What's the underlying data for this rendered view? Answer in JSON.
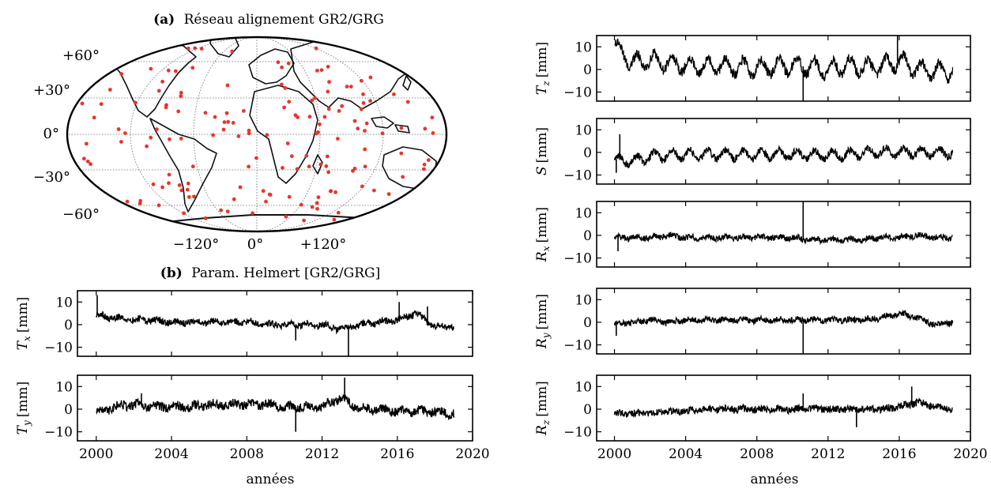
{
  "map_panel": {
    "title_prefix": "(a)",
    "title_text": "Réseau alignement GR2/GRG",
    "lat_labels": [
      "+60°",
      "+30°",
      "0°",
      "−30°",
      "−60°"
    ],
    "lon_labels": [
      "−120°",
      "0°",
      "+120°"
    ],
    "station_color": "#e8352c"
  },
  "helmert_panel": {
    "title_prefix": "(b)",
    "title_text": "Param. Helmert [GR2/GRG]"
  },
  "xlabel": "années",
  "x_ticks": [
    "2000",
    "2004",
    "2008",
    "2012",
    "2016",
    "2020"
  ],
  "y_ticks": [
    "10",
    "0",
    "−10"
  ],
  "chart_data": [
    {
      "type": "line",
      "id": "Tz",
      "ylabel_sym": "T",
      "ylabel_sub": "z",
      "ylabel_unit": "[mm]",
      "xlim": [
        1999,
        2020
      ],
      "ylim": [
        -14,
        15
      ],
      "x": [
        2000,
        2001,
        2002,
        2003,
        2004,
        2005,
        2006,
        2007,
        2008,
        2009,
        2010,
        2011,
        2012,
        2013,
        2014,
        2015,
        2016,
        2017,
        2018,
        2019
      ],
      "y": [
        11,
        3,
        4,
        3,
        2,
        1,
        2,
        1,
        1,
        1,
        2,
        1,
        0,
        2,
        1,
        1,
        4,
        0,
        -1,
        -1
      ],
      "spikes": [
        {
          "x": 2010.6,
          "y": -14
        },
        {
          "x": 2015.9,
          "y": 15
        }
      ],
      "seasonal_amp": 3.5,
      "noise": 2.2
    },
    {
      "type": "line",
      "id": "S",
      "ylabel_sym": "S",
      "ylabel_sub": "",
      "ylabel_unit": "[mm]",
      "xlim": [
        1999,
        2020
      ],
      "ylim": [
        -14,
        15
      ],
      "x": [
        2000,
        2001,
        2002,
        2003,
        2004,
        2005,
        2006,
        2007,
        2008,
        2009,
        2010,
        2011,
        2012,
        2013,
        2014,
        2015,
        2016,
        2017,
        2018,
        2019
      ],
      "y": [
        -3,
        -4,
        -2,
        -1,
        -1,
        -1,
        -1,
        -1,
        -1,
        -1,
        -1,
        -1,
        -1,
        -1,
        0,
        0,
        0,
        0,
        0,
        0
      ],
      "spikes": [
        {
          "x": 2000.3,
          "y": 8
        },
        {
          "x": 2000.1,
          "y": -9
        }
      ],
      "seasonal_amp": 2.0,
      "noise": 1.6
    },
    {
      "type": "line",
      "id": "Rx",
      "ylabel_sym": "R",
      "ylabel_sub": "x",
      "ylabel_unit": "[mm]",
      "xlim": [
        1999,
        2020
      ],
      "ylim": [
        -14,
        15
      ],
      "x": [
        2000,
        2001,
        2002,
        2003,
        2004,
        2005,
        2006,
        2007,
        2008,
        2009,
        2010,
        2011,
        2012,
        2013,
        2014,
        2015,
        2016,
        2017,
        2018,
        2019
      ],
      "y": [
        -1,
        -1,
        -1,
        0,
        -1,
        -1,
        -1,
        -1,
        -1,
        -1,
        -1,
        -2,
        -2,
        -2,
        -2,
        -1,
        -1,
        0,
        -1,
        -1
      ],
      "spikes": [
        {
          "x": 2010.6,
          "y": 15
        },
        {
          "x": 2000.2,
          "y": -7
        }
      ],
      "seasonal_amp": 0.5,
      "noise": 1.3
    },
    {
      "type": "line",
      "id": "Ry",
      "ylabel_sym": "R",
      "ylabel_sub": "y",
      "ylabel_unit": "[mm]",
      "xlim": [
        1999,
        2020
      ],
      "ylim": [
        -14,
        15
      ],
      "x": [
        2000,
        2001,
        2002,
        2003,
        2004,
        2005,
        2006,
        2007,
        2008,
        2009,
        2010,
        2011,
        2012,
        2013,
        2014,
        2015,
        2016,
        2017,
        2018,
        2019
      ],
      "y": [
        -1,
        0,
        1,
        0,
        1,
        1,
        1,
        1,
        1,
        1,
        1,
        1,
        1,
        1,
        1,
        2,
        4,
        2,
        -1,
        0
      ],
      "spikes": [
        {
          "x": 2010.6,
          "y": -14
        },
        {
          "x": 2000.1,
          "y": -6
        }
      ],
      "seasonal_amp": 0.5,
      "noise": 1.3
    },
    {
      "type": "line",
      "id": "Rz",
      "ylabel_sym": "R",
      "ylabel_sub": "z",
      "ylabel_unit": "[mm]",
      "xlim": [
        1999,
        2020
      ],
      "ylim": [
        -14,
        15
      ],
      "x": [
        2000,
        2001,
        2002,
        2003,
        2004,
        2005,
        2006,
        2007,
        2008,
        2009,
        2010,
        2011,
        2012,
        2013,
        2014,
        2015,
        2016,
        2017,
        2018,
        2019
      ],
      "y": [
        -2,
        -2,
        -2,
        -1,
        -1,
        0,
        0,
        0,
        0,
        0,
        0,
        0,
        0,
        0,
        0,
        0,
        1,
        3,
        1,
        0
      ],
      "spikes": [
        {
          "x": 2016.7,
          "y": 10
        },
        {
          "x": 2013.6,
          "y": -8
        },
        {
          "x": 2010.6,
          "y": 7
        }
      ],
      "seasonal_amp": 0.4,
      "noise": 1.6
    },
    {
      "type": "line",
      "id": "Tx",
      "ylabel_sym": "T",
      "ylabel_sub": "x",
      "ylabel_unit": "[mm]",
      "xlim": [
        1999,
        2020
      ],
      "ylim": [
        -14,
        15
      ],
      "x": [
        2000,
        2001,
        2002,
        2003,
        2004,
        2005,
        2006,
        2007,
        2008,
        2009,
        2010,
        2011,
        2012,
        2013,
        2014,
        2015,
        2016,
        2017,
        2018,
        2019
      ],
      "y": [
        4,
        3,
        2,
        2,
        1,
        1,
        1,
        1,
        1,
        0,
        0,
        0,
        0,
        -2,
        0,
        1,
        2,
        5,
        -1,
        -1
      ],
      "spikes": [
        {
          "x": 2000.05,
          "y": 13
        },
        {
          "x": 2013.4,
          "y": -14
        },
        {
          "x": 2016.1,
          "y": 10
        },
        {
          "x": 2010.6,
          "y": -7
        },
        {
          "x": 2017.6,
          "y": 8
        }
      ],
      "seasonal_amp": 0.6,
      "noise": 1.5
    },
    {
      "type": "line",
      "id": "Ty",
      "ylabel_sym": "T",
      "ylabel_sub": "y",
      "ylabel_unit": "[mm]",
      "xlim": [
        1999,
        2020
      ],
      "ylim": [
        -14,
        15
      ],
      "x": [
        2000,
        2001,
        2002,
        2003,
        2004,
        2005,
        2006,
        2007,
        2008,
        2009,
        2010,
        2011,
        2012,
        2013,
        2014,
        2015,
        2016,
        2017,
        2018,
        2019
      ],
      "y": [
        -1,
        1,
        2,
        1,
        1,
        1,
        2,
        2,
        2,
        2,
        1,
        1,
        1,
        5,
        0,
        0,
        -1,
        -1,
        -1,
        -2
      ],
      "spikes": [
        {
          "x": 2013.2,
          "y": 14
        },
        {
          "x": 2010.6,
          "y": -10
        },
        {
          "x": 2002.4,
          "y": 7
        }
      ],
      "seasonal_amp": 0.8,
      "noise": 2.0
    }
  ]
}
